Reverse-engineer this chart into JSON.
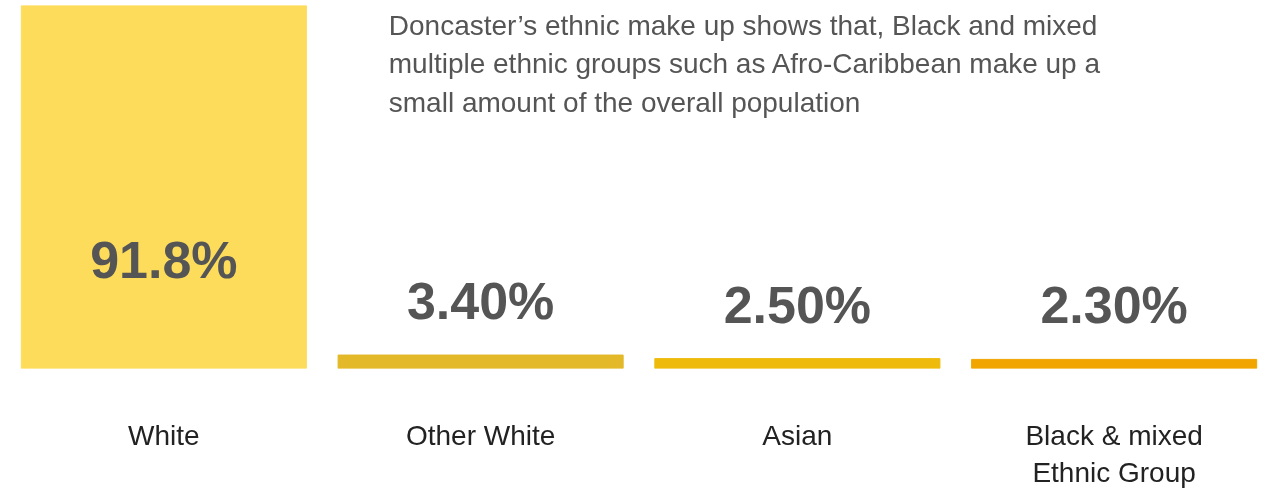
{
  "chart_data": {
    "type": "bar",
    "title": "Doncaster’s ethnic make up shows that, Black and mixed multiple ethnic groups such as Afro-Caribbean make up a small amount of the overall population",
    "categories": [
      "White",
      "Other White",
      "Asian",
      "Black & mixed Ethnic Group"
    ],
    "values": [
      91.8,
      3.4,
      2.5,
      2.3
    ],
    "value_labels": [
      "91.8%",
      "3.40%",
      "2.50%",
      "2.30%"
    ],
    "colors": [
      "#fddc5c",
      "#e3b929",
      "#eebb0d",
      "#f0a500"
    ],
    "grid": false
  }
}
